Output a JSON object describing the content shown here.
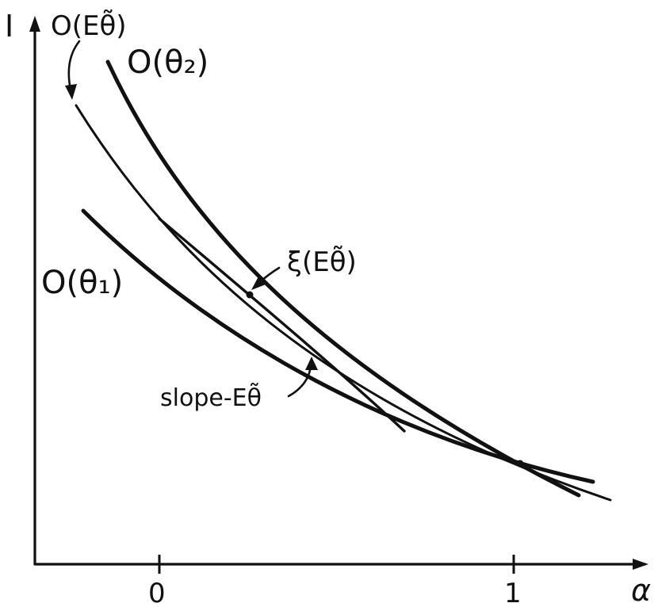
{
  "axes": {
    "y_label": "I",
    "x_label": "α",
    "x_ticks": [
      "0",
      "1"
    ]
  },
  "labels": {
    "o_e_theta": "O(Eθ̃)",
    "o_theta_2": "O(θ₂)",
    "o_theta_1": "O(θ₁)",
    "xi_e_theta": "ξ(Eθ̃)",
    "slope": "slope-Eθ̃"
  }
}
